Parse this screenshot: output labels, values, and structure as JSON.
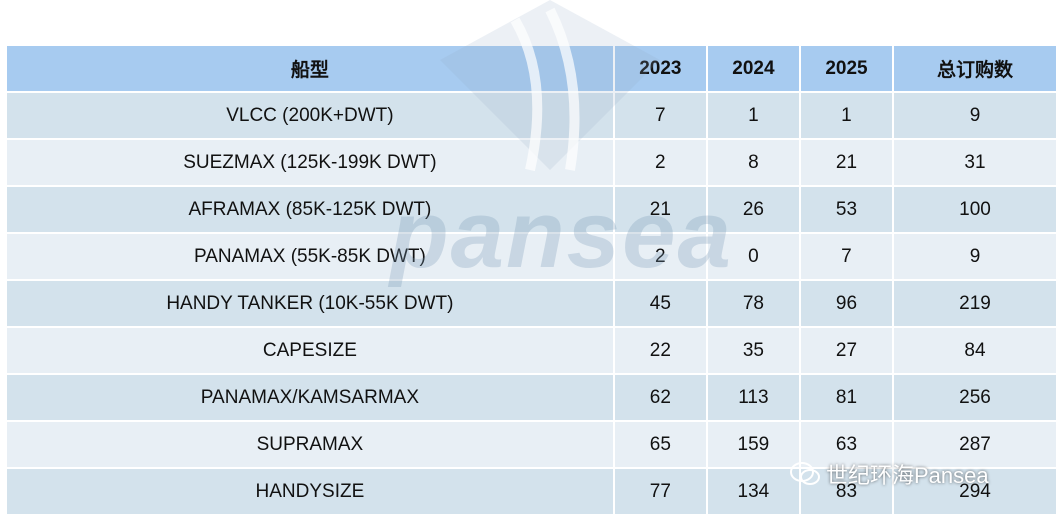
{
  "table": {
    "header": [
      "船型",
      "2023",
      "2024",
      "2025",
      "总订购数"
    ],
    "rows": [
      [
        "VLCC (200K+DWT)",
        7,
        1,
        1,
        9
      ],
      [
        "SUEZMAX (125K-199K DWT)",
        2,
        8,
        21,
        31
      ],
      [
        "AFRAMAX (85K-125K DWT)",
        21,
        26,
        53,
        100
      ],
      [
        "PANAMAX (55K-85K DWT)",
        2,
        0,
        7,
        9
      ],
      [
        "HANDY TANKER (10K-55K DWT)",
        45,
        78,
        96,
        219
      ],
      [
        "CAPESIZE",
        22,
        35,
        27,
        84
      ],
      [
        "PANAMAX/KAMSARMAX",
        62,
        113,
        81,
        256
      ],
      [
        "SUPRAMAX",
        65,
        159,
        63,
        287
      ],
      [
        "HANDYSIZE",
        77,
        134,
        83,
        294
      ]
    ]
  },
  "watermark": "pansea",
  "source": "世纪环海Pansea"
}
